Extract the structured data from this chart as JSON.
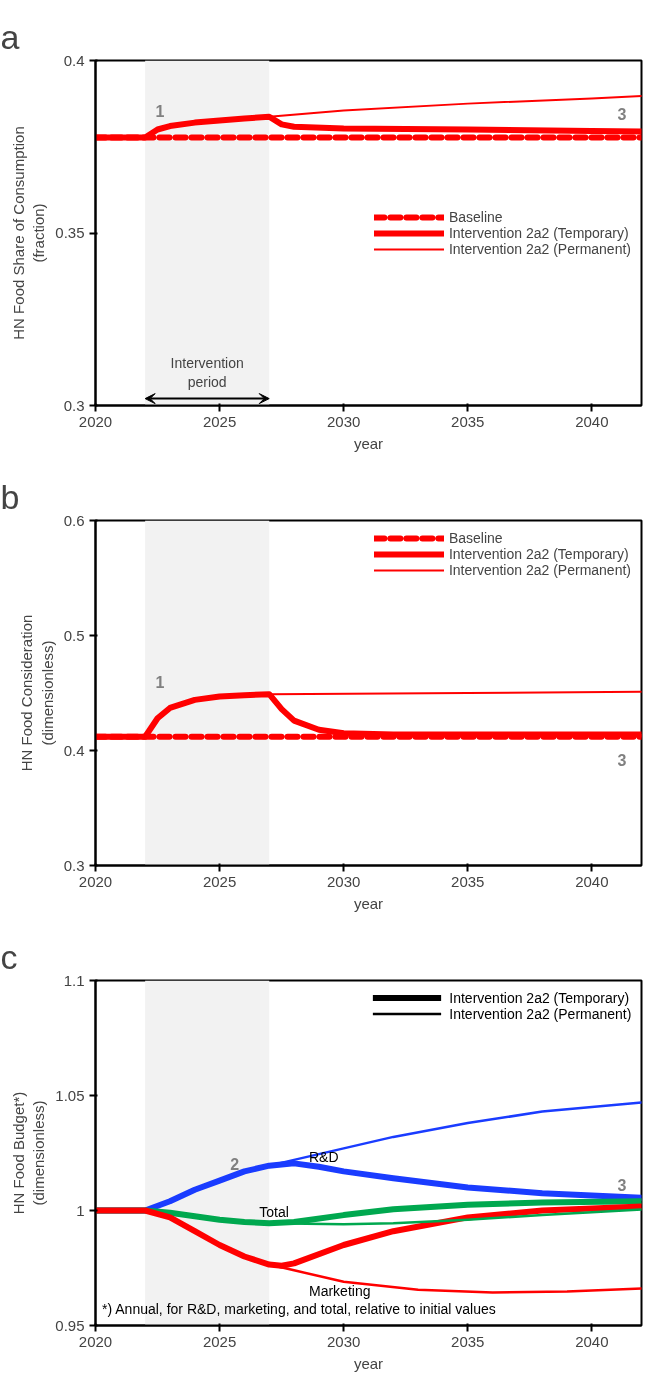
{
  "chart_data": [
    {
      "type": "line",
      "title": "a",
      "xlabel": "year",
      "ylabel": "HN Food Share of Consumption\n(fraction)",
      "xlim": [
        2020,
        2042
      ],
      "xticks": [
        2020,
        2025,
        2030,
        2035,
        2040
      ],
      "ylim": [
        0.3,
        0.4
      ],
      "yticks": [
        0.3,
        0.35,
        0.4
      ],
      "grid": false,
      "legend": "right",
      "bands": [
        {
          "axis": "x",
          "from": 2022,
          "to": 2027,
          "color": "#f2f2f2"
        }
      ],
      "annotations": [
        {
          "text": "Intervention\nperiod",
          "x": 2024.5,
          "y": 0.3
        },
        "1",
        "3"
      ],
      "series": [
        {
          "name": "Baseline",
          "color": "#ff0000",
          "line_style": "dashed",
          "x": [
            2020,
            2042
          ],
          "values": [
            0.3777,
            0.3777
          ]
        },
        {
          "name": "Intervention 2a2 (Temporary)",
          "color": "#ff0000",
          "line_style": "solid",
          "x": [
            2020,
            2022,
            2022.5,
            2023,
            2024,
            2025,
            2026,
            2027,
            2027.5,
            2028,
            2030,
            2035,
            2040,
            2042
          ],
          "values": [
            0.3777,
            0.3777,
            0.38,
            0.381,
            0.382,
            0.3826,
            0.3832,
            0.3837,
            0.3815,
            0.3808,
            0.3803,
            0.38,
            0.3796,
            0.3794
          ]
        },
        {
          "name": "Intervention 2a2 (Permanent)",
          "color": "#ff0000",
          "line_style": "solid",
          "x": [
            2027,
            2030,
            2035,
            2040,
            2042
          ],
          "values": [
            0.3837,
            0.3855,
            0.3875,
            0.389,
            0.3897
          ]
        }
      ]
    },
    {
      "type": "line",
      "title": "b",
      "xlabel": "year",
      "ylabel": "HN Food Consideration\n(dimensionless)",
      "xlim": [
        2020,
        2042
      ],
      "xticks": [
        2020,
        2025,
        2030,
        2035,
        2040
      ],
      "ylim": [
        0.3,
        0.6
      ],
      "yticks": [
        0.3,
        0.4,
        0.5,
        0.6
      ],
      "grid": false,
      "legend": "top right",
      "bands": [
        {
          "axis": "x",
          "from": 2022,
          "to": 2027,
          "color": "#f2f2f2"
        }
      ],
      "annotations": [
        "1",
        "3"
      ],
      "series": [
        {
          "name": "Baseline",
          "color": "#ff0000",
          "line_style": "dashed",
          "x": [
            2020,
            2042
          ],
          "values": [
            0.412,
            0.412
          ]
        },
        {
          "name": "Intervention 2a2 (Temporary)",
          "color": "#ff0000",
          "line_style": "solid",
          "x": [
            2020,
            2022,
            2022.5,
            2023,
            2024,
            2025,
            2026,
            2027,
            2027.5,
            2028,
            2029,
            2030,
            2032,
            2042
          ],
          "values": [
            0.412,
            0.412,
            0.428,
            0.437,
            0.444,
            0.447,
            0.448,
            0.449,
            0.436,
            0.426,
            0.418,
            0.415,
            0.414,
            0.414
          ]
        },
        {
          "name": "Intervention 2a2 (Permanent)",
          "color": "#ff0000",
          "line_style": "solid",
          "x": [
            2027,
            2035,
            2042
          ],
          "values": [
            0.449,
            0.45,
            0.451
          ]
        }
      ]
    },
    {
      "type": "line",
      "title": "c",
      "xlabel": "year",
      "ylabel": "HN Food Budget*)\n(dimensionless)",
      "xlim": [
        2020,
        2042
      ],
      "xticks": [
        2020,
        2025,
        2030,
        2035,
        2040
      ],
      "ylim": [
        0.95,
        1.1
      ],
      "yticks": [
        0.95,
        1,
        1.05,
        1.1
      ],
      "grid": false,
      "legend": "top right",
      "bands": [
        {
          "axis": "x",
          "from": 2022,
          "to": 2027,
          "color": "#f2f2f2"
        }
      ],
      "annotations": [
        "*) Annual, for R&D, marketing, and total, relative to initial values",
        "2",
        "3",
        "R&D",
        "Total",
        "Marketing",
        "Intervention 2a2 (Temporary)",
        "Intervention 2a2 (Permanent)"
      ],
      "series": [
        {
          "color": "#1a3cff",
          "line_style": "solid",
          "x": [
            2020,
            2022,
            2023,
            2024,
            2025,
            2026,
            2027,
            2028,
            2029,
            2030,
            2032,
            2035,
            2038,
            2042
          ],
          "values": [
            1.0,
            1.0,
            1.004,
            1.009,
            1.013,
            1.017,
            1.0195,
            1.0205,
            1.019,
            1.017,
            1.014,
            1.01,
            1.0075,
            1.0055
          ]
        },
        {
          "color": "#00a84f",
          "line_style": "solid",
          "x": [
            2020,
            2022,
            2023,
            2024,
            2025,
            2026,
            2027,
            2028,
            2030,
            2032,
            2035,
            2038,
            2042
          ],
          "values": [
            1.0,
            1.0,
            0.999,
            0.9975,
            0.996,
            0.995,
            0.9945,
            0.995,
            0.998,
            1.0005,
            1.0025,
            1.0035,
            1.004
          ]
        },
        {
          "color": "#ff0000",
          "line_style": "solid",
          "x": [
            2020,
            2022,
            2023,
            2024,
            2025,
            2026,
            2027,
            2027.5,
            2028,
            2030,
            2032,
            2035,
            2038,
            2042
          ],
          "values": [
            1.0,
            1.0,
            0.997,
            0.991,
            0.985,
            0.98,
            0.9765,
            0.976,
            0.977,
            0.985,
            0.991,
            0.997,
            1.0,
            1.0017
          ]
        },
        {
          "color": "#1a3cff",
          "line_style": "solid",
          "x": [
            2027,
            2028,
            2030,
            2032,
            2035,
            2038,
            2042
          ],
          "values": [
            1.0195,
            1.022,
            1.027,
            1.032,
            1.038,
            1.043,
            1.047
          ]
        },
        {
          "color": "#00a84f",
          "line_style": "solid",
          "x": [
            2027,
            2030,
            2032,
            2035,
            2038,
            2042
          ],
          "values": [
            0.9945,
            0.994,
            0.9945,
            0.996,
            0.998,
            1.0004
          ]
        },
        {
          "color": "#ff0000",
          "line_style": "solid",
          "x": [
            2027,
            2028,
            2030,
            2033,
            2036,
            2039,
            2042
          ],
          "values": [
            0.9765,
            0.974,
            0.969,
            0.9655,
            0.9644,
            0.9648,
            0.9661
          ]
        }
      ]
    }
  ]
}
